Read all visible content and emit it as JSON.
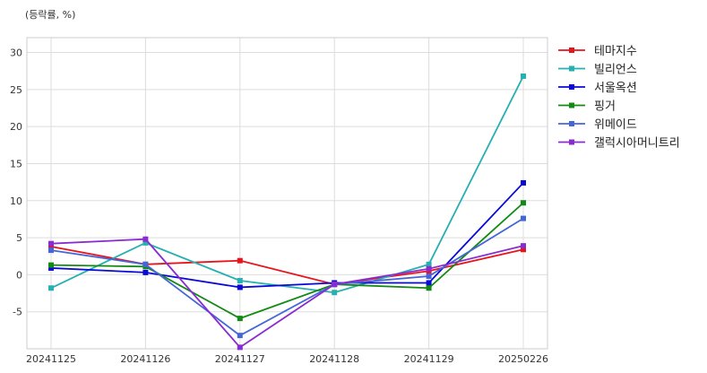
{
  "chart_data": {
    "type": "line",
    "unit_label": "(등락률, %)",
    "x": [
      "20241125",
      "20241126",
      "20241127",
      "20241128",
      "20241129",
      "20250226"
    ],
    "ylim": [
      -10,
      32
    ],
    "yticks": [
      -5,
      0,
      5,
      10,
      15,
      20,
      25,
      30
    ],
    "grid": true,
    "legend_position": "outside-right",
    "series": [
      {
        "name": "테마지수",
        "color": "#e8141c",
        "values": [
          3.8,
          1.4,
          1.9,
          -1.3,
          0.5,
          3.4
        ]
      },
      {
        "name": "빌리언스",
        "color": "#26b0b0",
        "values": [
          -1.8,
          4.3,
          -0.8,
          -2.4,
          1.4,
          26.8
        ]
      },
      {
        "name": "서울옥션",
        "color": "#0a0ad8",
        "values": [
          0.9,
          0.3,
          -1.7,
          -1.1,
          -1.1,
          12.4
        ]
      },
      {
        "name": "핑거",
        "color": "#138a13",
        "values": [
          1.3,
          1.1,
          -5.9,
          -1.3,
          -1.8,
          9.7
        ]
      },
      {
        "name": "위메이드",
        "color": "#4466d8",
        "values": [
          3.3,
          1.4,
          -8.2,
          -1.3,
          -0.2,
          7.6
        ]
      },
      {
        "name": "갤럭시아머니트리",
        "color": "#8a2bd2",
        "values": [
          4.2,
          4.8,
          -9.8,
          -1.3,
          0.8,
          3.9
        ]
      }
    ]
  }
}
